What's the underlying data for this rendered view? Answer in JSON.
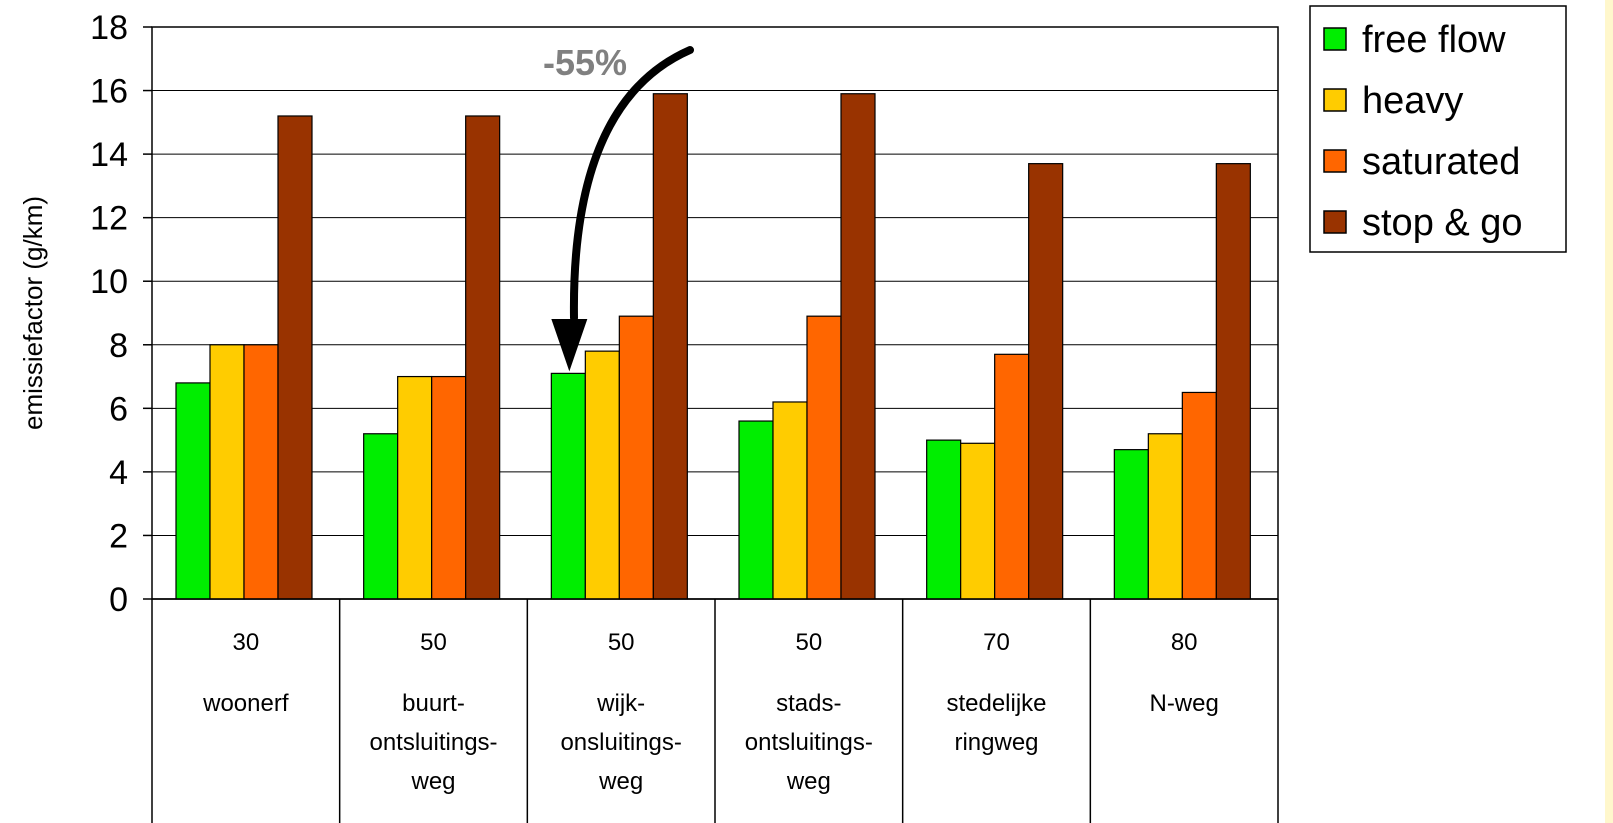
{
  "chart_data": {
    "type": "bar",
    "ylabel": "emissiefactor (g/km)",
    "ylim": [
      0,
      18
    ],
    "yticks": [
      "0",
      "2",
      "4",
      "6",
      "8",
      "10",
      "12",
      "14",
      "16",
      "18"
    ],
    "grid": true,
    "legend_position": "top-right",
    "categories": [
      {
        "speed": "30",
        "name": [
          "woonerf"
        ]
      },
      {
        "speed": "50",
        "name": [
          "buurt-",
          "ontsluitings-",
          "weg"
        ]
      },
      {
        "speed": "50",
        "name": [
          "wijk-",
          "onsluitings-",
          "weg"
        ]
      },
      {
        "speed": "50",
        "name": [
          "stads-",
          "ontsluitings-",
          "weg"
        ]
      },
      {
        "speed": "70",
        "name": [
          "stedelijke",
          "ringweg"
        ]
      },
      {
        "speed": "80",
        "name": [
          "N-weg"
        ]
      }
    ],
    "series": [
      {
        "name": "free flow",
        "color": "#00ee00",
        "values": [
          6.8,
          5.2,
          7.1,
          5.6,
          5.0,
          4.7
        ]
      },
      {
        "name": "heavy",
        "color": "#ffcc00",
        "values": [
          8.0,
          7.0,
          7.8,
          6.2,
          4.9,
          5.2
        ]
      },
      {
        "name": "saturated",
        "color": "#ff6600",
        "values": [
          8.0,
          7.0,
          8.9,
          8.9,
          7.7,
          6.5
        ]
      },
      {
        "name": "stop & go",
        "color": "#993300",
        "values": [
          15.2,
          15.2,
          15.9,
          15.9,
          13.7,
          13.7
        ]
      }
    ],
    "annotation": {
      "text": "-55%",
      "target_category_index": 2
    }
  }
}
